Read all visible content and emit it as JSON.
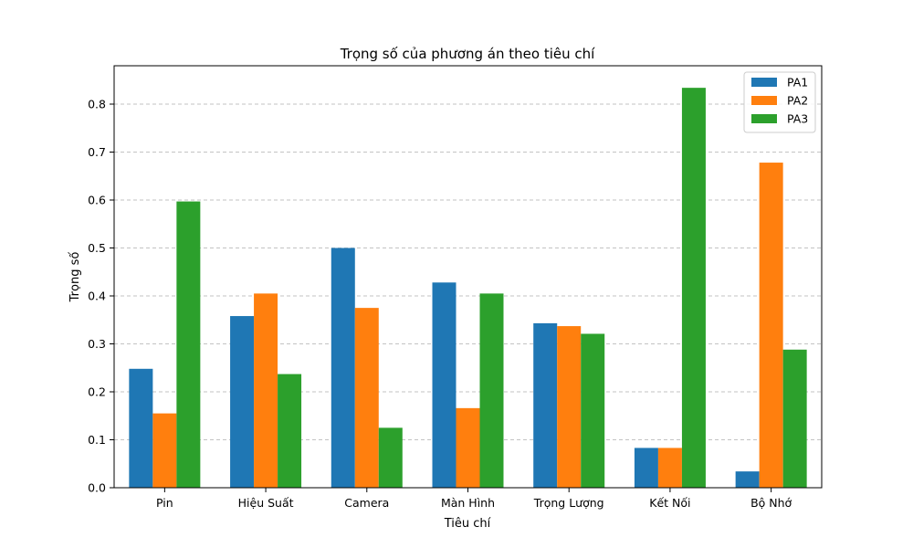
{
  "chart_data": {
    "type": "bar",
    "title": "Trọng số của phương án theo tiêu chí",
    "xlabel": "Tiêu chí",
    "ylabel": "Trọng số",
    "categories": [
      "Pin",
      "Hiệu Suất",
      "Camera",
      "Màn Hình",
      "Trọng Lượng",
      "Kết Nối",
      "Bộ Nhớ"
    ],
    "series": [
      {
        "name": "PA1",
        "color": "#1f77b4",
        "values": [
          0.248,
          0.358,
          0.5,
          0.428,
          0.343,
          0.083,
          0.034
        ]
      },
      {
        "name": "PA2",
        "color": "#ff7f0e",
        "values": [
          0.155,
          0.405,
          0.375,
          0.166,
          0.337,
          0.083,
          0.678
        ]
      },
      {
        "name": "PA3",
        "color": "#2ca02c",
        "values": [
          0.597,
          0.237,
          0.125,
          0.405,
          0.321,
          0.834,
          0.288
        ]
      }
    ],
    "ylim": [
      0,
      0.88
    ],
    "yticks": [
      "0.0",
      "0.1",
      "0.2",
      "0.3",
      "0.4",
      "0.5",
      "0.6",
      "0.7",
      "0.8"
    ],
    "grid": "y",
    "legend": "top-right"
  }
}
